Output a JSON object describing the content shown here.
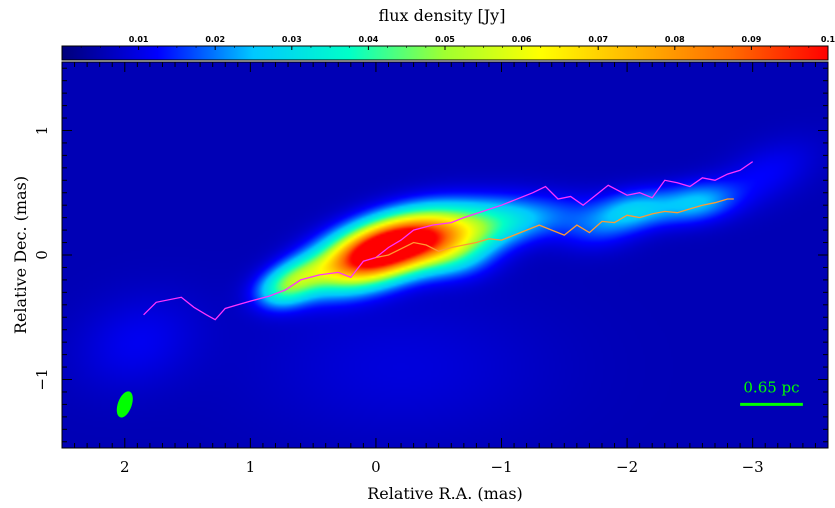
{
  "chart_data": {
    "type": "heatmap",
    "subtype": "radio-interferometric intensity image with jet ridge lines",
    "colorbar": {
      "label": "flux density [Jy]",
      "range": [
        0,
        0.1
      ],
      "ticks": [
        {
          "value": 0.01,
          "label": "0.01"
        },
        {
          "value": 0.02,
          "label": "0.02"
        },
        {
          "value": 0.03,
          "label": "0.03"
        },
        {
          "value": 0.04,
          "label": "0.04"
        },
        {
          "value": 0.05,
          "label": "0.05"
        },
        {
          "value": 0.06,
          "label": "0.06"
        },
        {
          "value": 0.07,
          "label": "0.07"
        },
        {
          "value": 0.08,
          "label": "0.08"
        },
        {
          "value": 0.09,
          "label": "0.09"
        },
        {
          "value": 0.1,
          "label": "0.1"
        }
      ],
      "colormap": [
        "#00007a",
        "#0000ff",
        "#00c8ff",
        "#00ffc8",
        "#a0ff30",
        "#ffff00",
        "#ffb400",
        "#ff6a00",
        "#ff0000"
      ],
      "position": "top"
    },
    "xaxis": {
      "label": "Relative R.A. (mas)",
      "range": [
        2.5,
        -3.6
      ],
      "reversed": true,
      "ticks": [
        {
          "value": 2,
          "label": "2"
        },
        {
          "value": 1,
          "label": "1"
        },
        {
          "value": 0,
          "label": "0"
        },
        {
          "value": -1,
          "label": "−1"
        },
        {
          "value": -2,
          "label": "−2"
        },
        {
          "value": -3,
          "label": "−3"
        }
      ]
    },
    "yaxis": {
      "label": "Relative Dec. (mas)",
      "range": [
        -1.55,
        1.55
      ],
      "ticks": [
        {
          "value": 1,
          "label": "1"
        },
        {
          "value": 0,
          "label": "0"
        },
        {
          "value": -1,
          "label": "−1"
        }
      ]
    },
    "background_color": "#000066",
    "emission_components": [
      {
        "ra": 0.0,
        "dec": 0.02,
        "sigma_major": 0.33,
        "sigma_minor": 0.15,
        "pa_deg": 20,
        "peak": 0.115
      },
      {
        "ra": -0.4,
        "dec": 0.14,
        "sigma_major": 0.3,
        "sigma_minor": 0.15,
        "pa_deg": 15,
        "peak": 0.05
      },
      {
        "ra": -0.85,
        "dec": 0.22,
        "sigma_major": 0.28,
        "sigma_minor": 0.14,
        "pa_deg": 15,
        "peak": 0.025
      },
      {
        "ra": -0.6,
        "dec": 0.0,
        "sigma_major": 0.22,
        "sigma_minor": 0.13,
        "pa_deg": 0,
        "peak": 0.018
      },
      {
        "ra": 0.62,
        "dec": -0.18,
        "sigma_major": 0.18,
        "sigma_minor": 0.1,
        "pa_deg": 20,
        "peak": 0.03
      },
      {
        "ra": 0.75,
        "dec": -0.3,
        "sigma_major": 0.15,
        "sigma_minor": 0.1,
        "pa_deg": 10,
        "peak": 0.018
      },
      {
        "ra": -1.3,
        "dec": 0.3,
        "sigma_major": 0.3,
        "sigma_minor": 0.12,
        "pa_deg": 10,
        "peak": 0.012
      },
      {
        "ra": -1.75,
        "dec": 0.2,
        "sigma_major": 0.22,
        "sigma_minor": 0.12,
        "pa_deg": 5,
        "peak": 0.009
      },
      {
        "ra": -2.05,
        "dec": 0.36,
        "sigma_major": 0.22,
        "sigma_minor": 0.11,
        "pa_deg": 10,
        "peak": 0.021
      },
      {
        "ra": -2.55,
        "dec": 0.42,
        "sigma_major": 0.22,
        "sigma_minor": 0.11,
        "pa_deg": 10,
        "peak": 0.02
      },
      {
        "ra": -3.1,
        "dec": 0.65,
        "sigma_major": 0.3,
        "sigma_minor": 0.15,
        "pa_deg": 25,
        "peak": 0.007
      },
      {
        "ra": 1.9,
        "dec": -0.7,
        "sigma_major": 0.35,
        "sigma_minor": 0.25,
        "pa_deg": 20,
        "peak": 0.006
      },
      {
        "ra": -0.2,
        "dec": -0.9,
        "sigma_major": 0.8,
        "sigma_minor": 0.4,
        "pa_deg": 0,
        "peak": 0.004
      }
    ],
    "ridge_lines": [
      {
        "color": "#ff33ff",
        "points": [
          [
            1.85,
            -0.48
          ],
          [
            1.75,
            -0.38
          ],
          [
            1.55,
            -0.34
          ],
          [
            1.45,
            -0.42
          ],
          [
            1.35,
            -0.48
          ],
          [
            1.28,
            -0.52
          ],
          [
            1.2,
            -0.43
          ],
          [
            1.1,
            -0.4
          ],
          [
            1.0,
            -0.37
          ],
          [
            0.85,
            -0.33
          ],
          [
            0.72,
            -0.28
          ],
          [
            0.6,
            -0.2
          ],
          [
            0.45,
            -0.16
          ],
          [
            0.3,
            -0.14
          ],
          [
            0.2,
            -0.18
          ],
          [
            0.1,
            -0.05
          ],
          [
            0.0,
            -0.02
          ],
          [
            -0.1,
            0.06
          ],
          [
            -0.2,
            0.12
          ],
          [
            -0.3,
            0.2
          ],
          [
            -0.45,
            0.24
          ],
          [
            -0.6,
            0.26
          ],
          [
            -0.7,
            0.3
          ],
          [
            -0.85,
            0.35
          ],
          [
            -1.0,
            0.4
          ],
          [
            -1.1,
            0.44
          ],
          [
            -1.25,
            0.5
          ],
          [
            -1.35,
            0.55
          ],
          [
            -1.45,
            0.45
          ],
          [
            -1.55,
            0.47
          ],
          [
            -1.65,
            0.4
          ],
          [
            -1.75,
            0.48
          ],
          [
            -1.85,
            0.56
          ],
          [
            -2.0,
            0.48
          ],
          [
            -2.1,
            0.5
          ],
          [
            -2.2,
            0.46
          ],
          [
            -2.3,
            0.6
          ],
          [
            -2.4,
            0.58
          ],
          [
            -2.5,
            0.55
          ],
          [
            -2.6,
            0.62
          ],
          [
            -2.7,
            0.6
          ],
          [
            -2.8,
            0.65
          ],
          [
            -2.9,
            0.68
          ],
          [
            -3.0,
            0.75
          ]
        ]
      },
      {
        "color": "#ff9933",
        "points": [
          [
            0.0,
            -0.02
          ],
          [
            -0.1,
            0.0
          ],
          [
            -0.2,
            0.05
          ],
          [
            -0.3,
            0.1
          ],
          [
            -0.4,
            0.08
          ],
          [
            -0.5,
            0.03
          ],
          [
            -0.6,
            0.06
          ],
          [
            -0.7,
            0.08
          ],
          [
            -0.8,
            0.1
          ],
          [
            -0.9,
            0.13
          ],
          [
            -1.0,
            0.12
          ],
          [
            -1.1,
            0.16
          ],
          [
            -1.2,
            0.2
          ],
          [
            -1.3,
            0.24
          ],
          [
            -1.4,
            0.2
          ],
          [
            -1.5,
            0.16
          ],
          [
            -1.6,
            0.24
          ],
          [
            -1.7,
            0.18
          ],
          [
            -1.8,
            0.27
          ],
          [
            -1.9,
            0.26
          ],
          [
            -2.0,
            0.32
          ],
          [
            -2.1,
            0.3
          ],
          [
            -2.2,
            0.33
          ],
          [
            -2.3,
            0.35
          ],
          [
            -2.4,
            0.34
          ],
          [
            -2.5,
            0.37
          ],
          [
            -2.6,
            0.4
          ],
          [
            -2.7,
            0.42
          ],
          [
            -2.8,
            0.45
          ],
          [
            -2.85,
            0.45
          ]
        ]
      }
    ],
    "beam": {
      "ra": 2.0,
      "dec": -1.2,
      "major": 0.22,
      "minor": 0.11,
      "pa_deg": 20,
      "color": "#00ff00"
    },
    "scale_bar": {
      "label": "0.65 pc",
      "ra_from": -2.9,
      "ra_to": -3.4,
      "dec": -1.2,
      "color": "#00ff00"
    }
  }
}
